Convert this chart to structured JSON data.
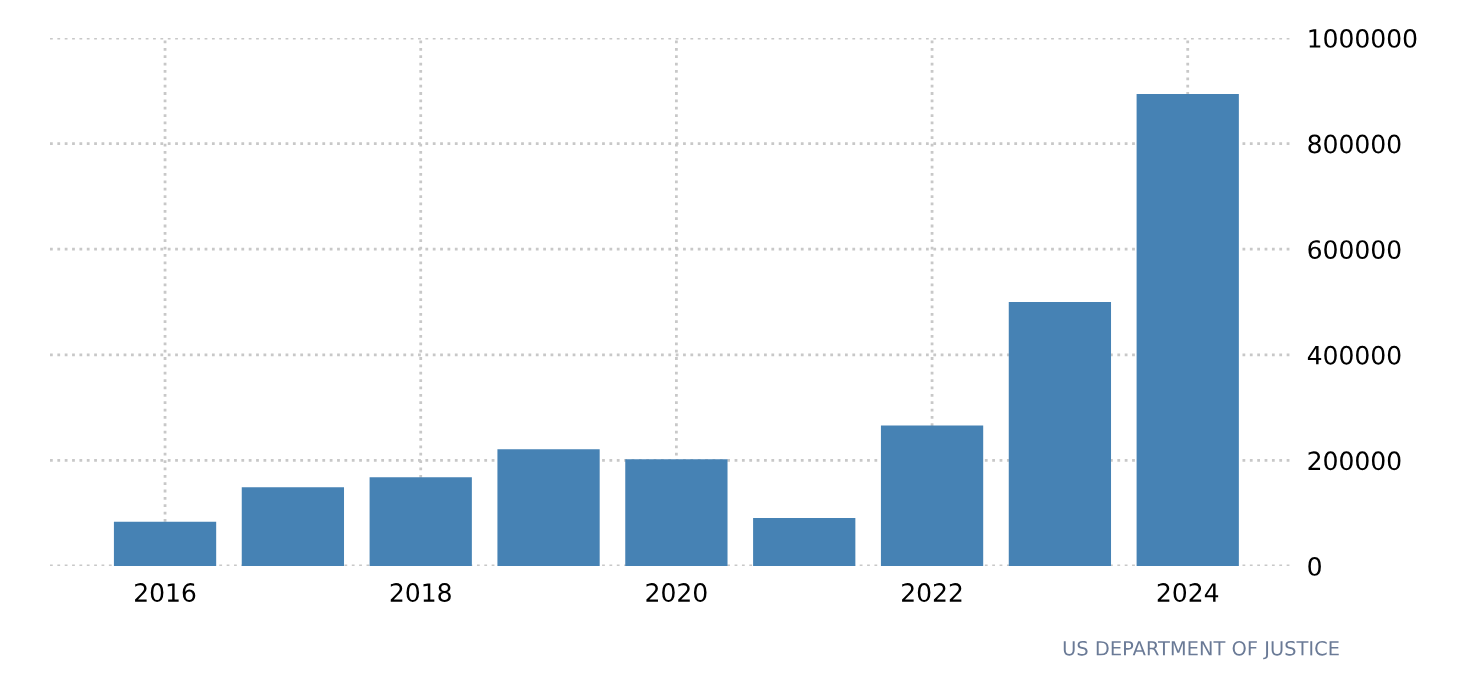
{
  "chart_data": {
    "type": "bar",
    "categories": [
      "2016",
      null,
      "2018",
      null,
      "2020",
      null,
      "2022",
      null,
      "2024"
    ],
    "values": [
      84000,
      149000,
      168000,
      221000,
      202000,
      91000,
      266000,
      500000,
      894000
    ],
    "color": "#4682b4",
    "ylim": [
      0,
      1000000
    ],
    "yticks": [
      0,
      200000,
      400000,
      600000,
      800000,
      1000000
    ],
    "grid": true,
    "annotations": [
      "US DEPARTMENT OF JUSTICE"
    ]
  }
}
